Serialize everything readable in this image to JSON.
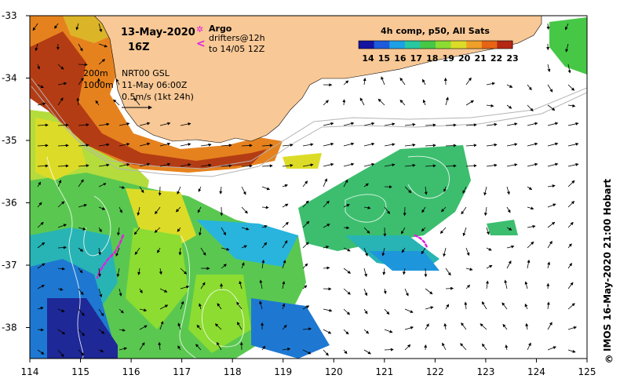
{
  "map": {
    "date": "13-May-2020",
    "time": "16Z",
    "argo_label": "Argo",
    "drifters_label": "drifters@12h",
    "drifters_to": "to 14/05 12Z",
    "contour_200": "200m",
    "contour_1000": "1000m",
    "current_model": "NRT00 GSL",
    "current_date": "11-May 06:00Z",
    "current_scale": "0.5m/s (1kt 24h)",
    "composite_title": "4h comp, p50, All Sats",
    "colorbar_labels": [
      "14",
      "15",
      "16",
      "17",
      "18",
      "19",
      "20",
      "21",
      "22",
      "23"
    ],
    "colorbar_colors": [
      "#1414a0",
      "#1e5adc",
      "#1ea0e6",
      "#28c8a0",
      "#46c846",
      "#8cdc32",
      "#dcdc28",
      "#f0a028",
      "#e66414",
      "#b42814"
    ],
    "credit": "IMOS 16-May-2020 21:00 Hobart",
    "copyright": "©",
    "lon_labels": [
      "114",
      "115",
      "116",
      "117",
      "118",
      "119",
      "120",
      "121",
      "122",
      "123",
      "124",
      "125"
    ],
    "lat_labels": [
      "-33",
      "-34",
      "-35",
      "-36",
      "-37",
      "-38"
    ],
    "colors": {
      "land": "#f8c896",
      "no_data": "#ffffff",
      "drifter": "#e020e0",
      "contour": "#b4b4b4"
    }
  }
}
